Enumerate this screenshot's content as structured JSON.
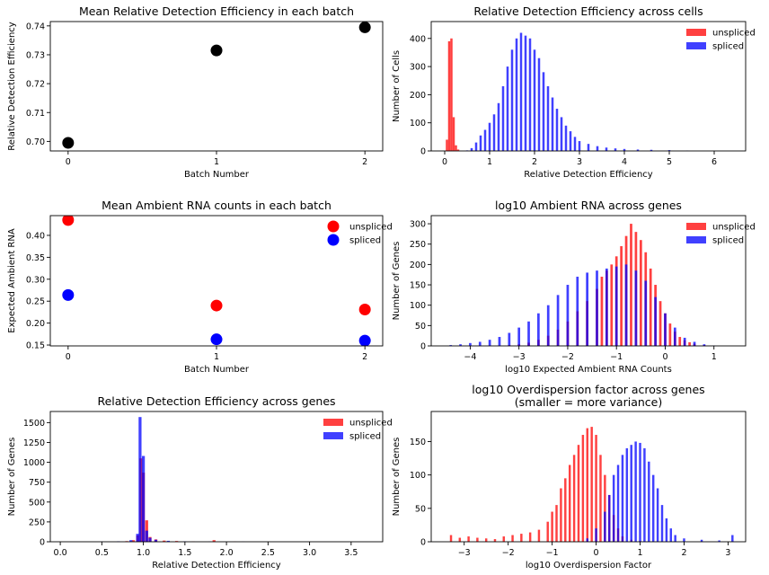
{
  "chart_data": [
    {
      "type": "scatter",
      "title": "Mean Relative Detection Efficiency in each batch",
      "xlabel": "Batch Number",
      "ylabel": "Relative Detection Efficiency",
      "xlim": [
        -0.12,
        2.12
      ],
      "ylim": [
        0.6967,
        0.7415
      ],
      "xticks": [
        0,
        1,
        2
      ],
      "yticks": [
        0.7,
        0.71,
        0.72,
        0.73,
        0.74
      ],
      "ytick_labels": [
        "0.70",
        "0.71",
        "0.72",
        "0.73",
        "0.74"
      ],
      "series": [
        {
          "color": "#000000",
          "x": [
            0,
            1,
            2
          ],
          "y": [
            0.6995,
            0.7315,
            0.7395
          ]
        }
      ]
    },
    {
      "type": "histogram",
      "title": "Relative Detection Efficiency across cells",
      "xlabel": "Relative Detection Efficiency",
      "ylabel": "Number of Cells",
      "xlim": [
        -0.3,
        6.7
      ],
      "ylim": [
        0,
        460
      ],
      "xticks": [
        0,
        1,
        2,
        3,
        4,
        5,
        6
      ],
      "yticks": [
        0,
        100,
        200,
        300,
        400
      ],
      "legend": "top-right",
      "series": [
        {
          "name": "unspliced",
          "color": "#ff0000",
          "alpha": 0.75,
          "bin_width": 0.05,
          "bins": [
            [
              0.05,
              40
            ],
            [
              0.1,
              390
            ],
            [
              0.15,
              400
            ],
            [
              0.2,
              120
            ],
            [
              0.25,
              20
            ],
            [
              0.3,
              5
            ]
          ]
        },
        {
          "name": "spliced",
          "color": "#0000ff",
          "alpha": 0.75,
          "bin_width": 0.05,
          "bins": [
            [
              0.5,
              2
            ],
            [
              0.6,
              10
            ],
            [
              0.7,
              30
            ],
            [
              0.8,
              55
            ],
            [
              0.9,
              75
            ],
            [
              1.0,
              100
            ],
            [
              1.1,
              130
            ],
            [
              1.2,
              170
            ],
            [
              1.3,
              230
            ],
            [
              1.4,
              300
            ],
            [
              1.5,
              360
            ],
            [
              1.6,
              400
            ],
            [
              1.7,
              420
            ],
            [
              1.8,
              410
            ],
            [
              1.9,
              400
            ],
            [
              2.0,
              360
            ],
            [
              2.1,
              330
            ],
            [
              2.2,
              280
            ],
            [
              2.3,
              230
            ],
            [
              2.4,
              190
            ],
            [
              2.5,
              150
            ],
            [
              2.6,
              120
            ],
            [
              2.7,
              90
            ],
            [
              2.8,
              70
            ],
            [
              2.9,
              50
            ],
            [
              3.0,
              35
            ],
            [
              3.2,
              25
            ],
            [
              3.4,
              17
            ],
            [
              3.6,
              12
            ],
            [
              3.8,
              9
            ],
            [
              4.0,
              7
            ],
            [
              4.3,
              5
            ],
            [
              4.6,
              4
            ],
            [
              5.0,
              3
            ],
            [
              5.4,
              1
            ]
          ]
        }
      ]
    },
    {
      "type": "scatter",
      "title": "Mean Ambient RNA counts in each batch",
      "xlabel": "Batch Number",
      "ylabel": "Expected Ambient RNA",
      "xlim": [
        -0.12,
        2.12
      ],
      "ylim": [
        0.148,
        0.445
      ],
      "xticks": [
        0,
        1,
        2
      ],
      "yticks": [
        0.15,
        0.2,
        0.25,
        0.3,
        0.35,
        0.4
      ],
      "ytick_labels": [
        "0.15",
        "0.20",
        "0.25",
        "0.30",
        "0.35",
        "0.40"
      ],
      "legend": "top-right",
      "series": [
        {
          "name": "unspliced",
          "color": "#ff0000",
          "x": [
            0,
            1,
            2
          ],
          "y": [
            0.435,
            0.24,
            0.231
          ]
        },
        {
          "name": "spliced",
          "color": "#0000ff",
          "x": [
            0,
            1,
            2
          ],
          "y": [
            0.264,
            0.163,
            0.16
          ]
        }
      ]
    },
    {
      "type": "histogram",
      "title": "log10 Ambient RNA across genes",
      "xlabel": "log10 Expected Ambient RNA Counts",
      "ylabel": "Number of Genes",
      "xlim": [
        -4.8,
        1.65
      ],
      "ylim": [
        0,
        320
      ],
      "xticks": [
        -4,
        -3,
        -2,
        -1,
        0,
        1
      ],
      "yticks": [
        0,
        50,
        100,
        150,
        200,
        250,
        300
      ],
      "legend": "top-right",
      "series": [
        {
          "name": "unspliced",
          "color": "#ff0000",
          "alpha": 0.75,
          "bin_width": 0.05,
          "bins": [
            [
              -3.2,
              2
            ],
            [
              -3.0,
              4
            ],
            [
              -2.8,
              8
            ],
            [
              -2.6,
              15
            ],
            [
              -2.4,
              25
            ],
            [
              -2.2,
              40
            ],
            [
              -2.0,
              60
            ],
            [
              -1.8,
              85
            ],
            [
              -1.6,
              110
            ],
            [
              -1.4,
              140
            ],
            [
              -1.3,
              170
            ],
            [
              -1.2,
              185
            ],
            [
              -1.1,
              200
            ],
            [
              -1.0,
              220
            ],
            [
              -0.9,
              245
            ],
            [
              -0.8,
              270
            ],
            [
              -0.7,
              300
            ],
            [
              -0.6,
              280
            ],
            [
              -0.5,
              260
            ],
            [
              -0.4,
              230
            ],
            [
              -0.3,
              190
            ],
            [
              -0.2,
              150
            ],
            [
              -0.1,
              110
            ],
            [
              0.0,
              80
            ],
            [
              0.1,
              55
            ],
            [
              0.2,
              35
            ],
            [
              0.3,
              22
            ],
            [
              0.4,
              14
            ],
            [
              0.5,
              9
            ],
            [
              0.6,
              5
            ],
            [
              0.8,
              2
            ]
          ]
        },
        {
          "name": "spliced",
          "color": "#0000ff",
          "alpha": 0.75,
          "bin_width": 0.05,
          "bins": [
            [
              -4.4,
              2
            ],
            [
              -4.2,
              4
            ],
            [
              -4.0,
              7
            ],
            [
              -3.8,
              10
            ],
            [
              -3.6,
              15
            ],
            [
              -3.4,
              22
            ],
            [
              -3.2,
              32
            ],
            [
              -3.0,
              45
            ],
            [
              -2.8,
              60
            ],
            [
              -2.6,
              80
            ],
            [
              -2.4,
              100
            ],
            [
              -2.2,
              125
            ],
            [
              -2.0,
              150
            ],
            [
              -1.8,
              170
            ],
            [
              -1.6,
              180
            ],
            [
              -1.4,
              185
            ],
            [
              -1.2,
              190
            ],
            [
              -1.0,
              195
            ],
            [
              -0.8,
              200
            ],
            [
              -0.6,
              185
            ],
            [
              -0.4,
              160
            ],
            [
              -0.2,
              120
            ],
            [
              0.0,
              80
            ],
            [
              0.2,
              45
            ],
            [
              0.4,
              20
            ],
            [
              0.6,
              10
            ],
            [
              0.8,
              4
            ],
            [
              1.0,
              1
            ]
          ]
        }
      ]
    },
    {
      "type": "histogram",
      "title": "Relative Detection Efficiency across genes",
      "xlabel": "Relative Detection Efficiency",
      "ylabel": "Number of Genes",
      "xlim": [
        -0.12,
        3.88
      ],
      "ylim": [
        0,
        1640
      ],
      "xticks": [
        0.0,
        0.5,
        1.0,
        1.5,
        2.0,
        2.5,
        3.0,
        3.5
      ],
      "xtick_labels": [
        "0.0",
        "0.5",
        "1.0",
        "1.5",
        "2.0",
        "2.5",
        "3.0",
        "3.5"
      ],
      "yticks": [
        0,
        250,
        500,
        750,
        1000,
        1250,
        1500
      ],
      "legend": "top-right",
      "series": [
        {
          "name": "unspliced",
          "color": "#ff0000",
          "alpha": 0.75,
          "bin_width": 0.035,
          "bins": [
            [
              0.8,
              8
            ],
            [
              0.88,
              20
            ],
            [
              0.93,
              80
            ],
            [
              0.97,
              1050
            ],
            [
              1.0,
              870
            ],
            [
              1.04,
              270
            ],
            [
              1.08,
              60
            ],
            [
              1.15,
              30
            ],
            [
              1.25,
              15
            ],
            [
              1.4,
              10
            ],
            [
              1.6,
              5
            ],
            [
              1.85,
              20
            ],
            [
              2.1,
              3
            ]
          ]
        },
        {
          "name": "spliced",
          "color": "#0000ff",
          "alpha": 0.75,
          "bin_width": 0.035,
          "bins": [
            [
              0.5,
              3
            ],
            [
              0.7,
              6
            ],
            [
              0.85,
              20
            ],
            [
              0.93,
              100
            ],
            [
              0.96,
              1570
            ],
            [
              1.0,
              1080
            ],
            [
              1.04,
              140
            ],
            [
              1.08,
              50
            ],
            [
              1.15,
              25
            ],
            [
              1.3,
              12
            ],
            [
              1.5,
              6
            ],
            [
              1.8,
              4
            ],
            [
              2.2,
              2
            ]
          ]
        }
      ]
    },
    {
      "type": "histogram",
      "title": "log10 Overdispersion factor across genes",
      "subtitle": "(smaller = more variance)",
      "xlabel": "log10 Overdispersion Factor",
      "ylabel": "Number of Genes",
      "xlim": [
        -3.75,
        3.4
      ],
      "ylim": [
        0,
        195
      ],
      "xticks": [
        -3,
        -2,
        -1,
        0,
        1,
        2,
        3
      ],
      "yticks": [
        0,
        50,
        100,
        150
      ],
      "series": [
        {
          "name": "unspliced",
          "color": "#ff0000",
          "alpha": 0.75,
          "bin_width": 0.05,
          "bins": [
            [
              -3.3,
              10
            ],
            [
              -3.1,
              6
            ],
            [
              -2.9,
              8
            ],
            [
              -2.7,
              6
            ],
            [
              -2.5,
              5
            ],
            [
              -2.3,
              4
            ],
            [
              -2.1,
              8
            ],
            [
              -1.9,
              10
            ],
            [
              -1.7,
              12
            ],
            [
              -1.5,
              14
            ],
            [
              -1.3,
              18
            ],
            [
              -1.1,
              30
            ],
            [
              -1.0,
              45
            ],
            [
              -0.9,
              55
            ],
            [
              -0.8,
              80
            ],
            [
              -0.7,
              95
            ],
            [
              -0.6,
              115
            ],
            [
              -0.5,
              130
            ],
            [
              -0.4,
              145
            ],
            [
              -0.3,
              160
            ],
            [
              -0.2,
              170
            ],
            [
              -0.1,
              172
            ],
            [
              0.0,
              160
            ],
            [
              0.1,
              130
            ],
            [
              0.2,
              100
            ],
            [
              0.3,
              70
            ],
            [
              0.4,
              40
            ],
            [
              0.5,
              20
            ],
            [
              0.6,
              8
            ],
            [
              0.8,
              3
            ],
            [
              1.0,
              1
            ]
          ]
        },
        {
          "name": "spliced",
          "color": "#0000ff",
          "alpha": 0.75,
          "bin_width": 0.05,
          "bins": [
            [
              -0.2,
              5
            ],
            [
              0.0,
              20
            ],
            [
              0.2,
              45
            ],
            [
              0.3,
              70
            ],
            [
              0.4,
              100
            ],
            [
              0.5,
              115
            ],
            [
              0.6,
              130
            ],
            [
              0.7,
              140
            ],
            [
              0.8,
              145
            ],
            [
              0.9,
              150
            ],
            [
              1.0,
              148
            ],
            [
              1.1,
              140
            ],
            [
              1.2,
              120
            ],
            [
              1.3,
              100
            ],
            [
              1.4,
              80
            ],
            [
              1.5,
              55
            ],
            [
              1.6,
              35
            ],
            [
              1.7,
              20
            ],
            [
              1.8,
              10
            ],
            [
              2.0,
              5
            ],
            [
              2.4,
              3
            ],
            [
              2.8,
              2
            ],
            [
              3.1,
              10
            ]
          ]
        }
      ]
    }
  ]
}
